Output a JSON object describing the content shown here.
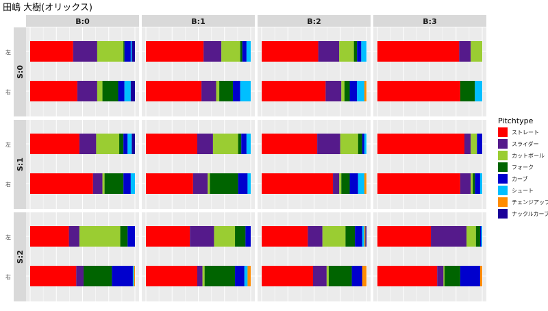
{
  "chart_data": {
    "type": "bar",
    "orientation": "horizontal",
    "stacked": true,
    "normalized": true,
    "title": "田嶋 大樹(オリックス)",
    "legend": {
      "title": "Pitchtype",
      "placement": "right",
      "items": [
        {
          "name": "ストレート",
          "color": "#FF0000"
        },
        {
          "name": "スライダー",
          "color": "#551A8B"
        },
        {
          "name": "カットボール",
          "color": "#9ACD32"
        },
        {
          "name": "フォーク",
          "color": "#006400"
        },
        {
          "name": "カーブ",
          "color": "#0000CD"
        },
        {
          "name": "シュート",
          "color": "#00BFFF"
        },
        {
          "name": "チェンジアップ",
          "color": "#FF8C00"
        },
        {
          "name": "ナックルカーブ",
          "color": "#1A0099"
        }
      ]
    },
    "facet_columns": [
      "B:0",
      "B:1",
      "B:2",
      "B:3"
    ],
    "facet_rows": [
      "S:0",
      "S:1",
      "S:2"
    ],
    "row_labels": [
      "左",
      "右"
    ],
    "grid": true,
    "panels": [
      [
        {
          "左": [
            0.41,
            0.23,
            0.25,
            0.01,
            0.06,
            0.01,
            0,
            0.03
          ],
          "右": [
            0.45,
            0.19,
            0.05,
            0.15,
            0.06,
            0.06,
            0,
            0.04
          ]
        },
        {
          "左": [
            0.55,
            0.17,
            0.18,
            0.02,
            0.04,
            0.04,
            0,
            0
          ]
        },
        {
          "左": [
            0.54,
            0.2,
            0.14,
            0.03,
            0.04,
            0.05,
            0,
            0
          ]
        },
        {
          "左": [
            0.78,
            0.11,
            0.11,
            0,
            0,
            0,
            0,
            0
          ]
        }
      ],
      [
        {
          "左": [
            0.47,
            0.16,
            0.22,
            0.04,
            0.04,
            0.04,
            0,
            0.03
          ],
          "右": [
            0.6,
            0.09,
            0.02,
            0.18,
            0.07,
            0.04,
            0,
            0
          ]
        },
        {
          "左": [
            0.49,
            0.15,
            0.24,
            0.03,
            0.05,
            0.04,
            0,
            0
          ]
        },
        {
          "左": [
            0.53,
            0.22,
            0.17,
            0.04,
            0.02,
            0.02,
            0,
            0
          ]
        },
        {
          "左": [
            0.83,
            0.06,
            0.06,
            0,
            0.05,
            0,
            0,
            0
          ]
        }
      ],
      [
        {
          "左": [
            0.37,
            0.1,
            0.39,
            0.07,
            0.07,
            0,
            0,
            0
          ],
          "右": [
            0.44,
            0.07,
            0,
            0.27,
            0.2,
            0.01,
            0.01,
            0
          ]
        },
        {
          "左": [
            0.42,
            0.23,
            0.2,
            0.1,
            0.05,
            0,
            0,
            0
          ]
        },
        {
          "左": [
            0.44,
            0.14,
            0.22,
            0.09,
            0.07,
            0.02,
            0.01,
            0.01
          ]
        },
        {
          "左": [
            0.51,
            0.34,
            0.09,
            0.04,
            0.01,
            0.01,
            0,
            0
          ]
        }
      ]
    ],
    "panels_right": [
      [
        {
          "右": [
            0.45,
            0.19,
            0.05,
            0.15,
            0.06,
            0.06,
            0,
            0.04
          ]
        },
        {
          "右": [
            0.53,
            0.14,
            0.03,
            0.13,
            0.07,
            0.1,
            0,
            0
          ]
        },
        {
          "右": [
            0.61,
            0.15,
            0.03,
            0.05,
            0.07,
            0.07,
            0.02,
            0
          ]
        },
        {
          "右": [
            0.79,
            0,
            0,
            0.14,
            0,
            0.07,
            0,
            0
          ]
        }
      ],
      [
        {
          "右": [
            0.6,
            0.09,
            0.02,
            0.18,
            0.07,
            0.04,
            0,
            0
          ]
        },
        {
          "右": [
            0.45,
            0.14,
            0.02,
            0.27,
            0.09,
            0.03,
            0,
            0
          ]
        },
        {
          "右": [
            0.68,
            0.06,
            0.02,
            0.08,
            0.08,
            0.06,
            0.02,
            0
          ]
        },
        {
          "右": [
            0.79,
            0.1,
            0.02,
            0.02,
            0.05,
            0.02,
            0,
            0
          ]
        }
      ],
      [
        {
          "右": [
            0.44,
            0.07,
            0,
            0.27,
            0.2,
            0.01,
            0.01,
            0
          ]
        },
        {
          "右": [
            0.49,
            0.05,
            0.02,
            0.29,
            0.09,
            0.03,
            0.03,
            0
          ]
        },
        {
          "右": [
            0.49,
            0.13,
            0.02,
            0.22,
            0.1,
            0,
            0.04,
            0
          ]
        },
        {
          "右": [
            0.57,
            0.06,
            0.01,
            0.15,
            0.19,
            0,
            0.02,
            0
          ]
        }
      ]
    ]
  }
}
